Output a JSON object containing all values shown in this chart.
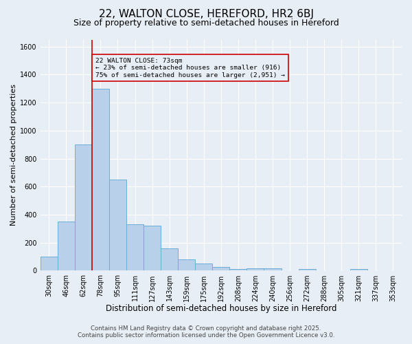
{
  "title1": "22, WALTON CLOSE, HEREFORD, HR2 6BJ",
  "title2": "Size of property relative to semi-detached houses in Hereford",
  "xlabel": "Distribution of semi-detached houses by size in Hereford",
  "ylabel": "Number of semi-detached properties",
  "categories": [
    "30sqm",
    "46sqm",
    "62sqm",
    "78sqm",
    "95sqm",
    "111sqm",
    "127sqm",
    "143sqm",
    "159sqm",
    "175sqm",
    "192sqm",
    "208sqm",
    "224sqm",
    "240sqm",
    "256sqm",
    "272sqm",
    "288sqm",
    "305sqm",
    "321sqm",
    "337sqm",
    "353sqm"
  ],
  "values": [
    100,
    350,
    900,
    1300,
    650,
    330,
    320,
    160,
    80,
    50,
    25,
    10,
    15,
    15,
    0,
    10,
    0,
    0,
    10,
    0,
    0
  ],
  "bar_color": "#b8d0ea",
  "bar_edge_color": "#6aaed6",
  "bg_color": "#e8eef5",
  "grid_color": "#ffffff",
  "annotation_box_color": "#cc0000",
  "annotation_line_color": "#cc0000",
  "vline_x": 2.5,
  "annotation_text": "22 WALTON CLOSE: 73sqm\n← 23% of semi-detached houses are smaller (916)\n75% of semi-detached houses are larger (2,951) →",
  "footer1": "Contains HM Land Registry data © Crown copyright and database right 2025.",
  "footer2": "Contains public sector information licensed under the Open Government Licence v3.0.",
  "ylim": [
    0,
    1650
  ],
  "title1_fontsize": 11,
  "title2_fontsize": 9,
  "xlabel_fontsize": 8.5,
  "ylabel_fontsize": 8,
  "tick_fontsize": 7,
  "annotation_fontsize": 6.8,
  "footer_fontsize": 6.2
}
